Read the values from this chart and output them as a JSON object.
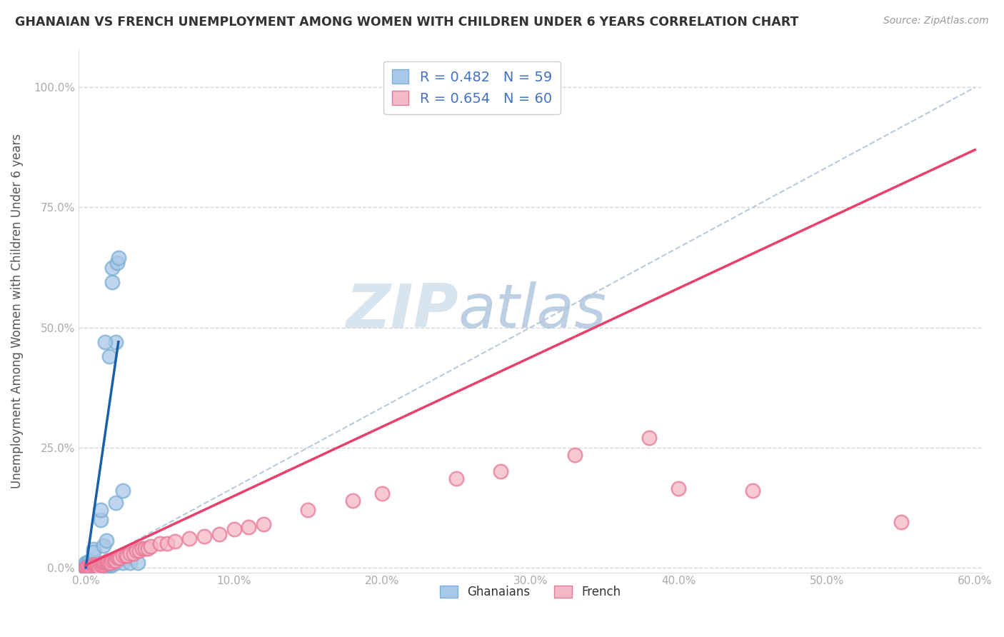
{
  "title": "GHANAIAN VS FRENCH UNEMPLOYMENT AMONG WOMEN WITH CHILDREN UNDER 6 YEARS CORRELATION CHART",
  "source": "Source: ZipAtlas.com",
  "ylabel": "Unemployment Among Women with Children Under 6 years",
  "xlabel": "",
  "xlim": [
    -0.005,
    0.605
  ],
  "ylim": [
    -0.01,
    1.08
  ],
  "xticks": [
    0.0,
    0.1,
    0.2,
    0.3,
    0.4,
    0.5,
    0.6
  ],
  "xticklabels": [
    "0.0%",
    "10.0%",
    "20.0%",
    "30.0%",
    "40.0%",
    "50.0%",
    "60.0%"
  ],
  "yticks": [
    0.0,
    0.25,
    0.5,
    0.75,
    1.0
  ],
  "yticklabels": [
    "0.0%",
    "25.0%",
    "50.0%",
    "75.0%",
    "100.0%"
  ],
  "ghanaian_color": "#a8c8e8",
  "ghanaian_edge": "#7bafd4",
  "french_color": "#f5b8c8",
  "french_edge": "#e87898",
  "blue_line_color": "#1a5fa8",
  "pink_line_color": "#e8406a",
  "ghanaian_R": 0.482,
  "ghanaian_N": 59,
  "french_R": 0.654,
  "french_N": 60,
  "legend_label_ghanaian": "Ghanaians",
  "legend_label_french": "French",
  "background_color": "#ffffff",
  "grid_color": "#cccccc",
  "title_color": "#333333",
  "axis_label_color": "#555555",
  "tick_color": "#4472c4",
  "watermark_zip": "ZIP",
  "watermark_atlas": "atlas",
  "diag_line_color": "#b0c4d8",
  "ghanaian_points": [
    [
      0.0,
      0.0
    ],
    [
      0.0,
      0.0
    ],
    [
      0.0,
      0.005
    ],
    [
      0.0,
      0.01
    ],
    [
      0.001,
      0.0
    ],
    [
      0.001,
      0.005
    ],
    [
      0.001,
      0.01
    ],
    [
      0.002,
      0.0
    ],
    [
      0.002,
      0.005
    ],
    [
      0.002,
      0.01
    ],
    [
      0.003,
      0.0
    ],
    [
      0.003,
      0.005
    ],
    [
      0.003,
      0.015
    ],
    [
      0.004,
      0.0
    ],
    [
      0.004,
      0.005
    ],
    [
      0.004,
      0.01
    ],
    [
      0.005,
      0.0
    ],
    [
      0.005,
      0.005
    ],
    [
      0.005,
      0.01
    ],
    [
      0.006,
      0.0
    ],
    [
      0.006,
      0.005
    ],
    [
      0.006,
      0.01
    ],
    [
      0.007,
      0.0
    ],
    [
      0.007,
      0.005
    ],
    [
      0.007,
      0.01
    ],
    [
      0.008,
      0.0
    ],
    [
      0.008,
      0.005
    ],
    [
      0.009,
      0.0
    ],
    [
      0.009,
      0.005
    ],
    [
      0.01,
      0.0
    ],
    [
      0.01,
      0.005
    ],
    [
      0.011,
      0.0
    ],
    [
      0.011,
      0.005
    ],
    [
      0.012,
      0.0
    ],
    [
      0.013,
      0.005
    ],
    [
      0.014,
      0.0
    ],
    [
      0.015,
      0.005
    ],
    [
      0.016,
      0.005
    ],
    [
      0.017,
      0.005
    ],
    [
      0.018,
      0.005
    ],
    [
      0.02,
      0.01
    ],
    [
      0.025,
      0.01
    ],
    [
      0.03,
      0.01
    ],
    [
      0.035,
      0.01
    ],
    [
      0.005,
      0.038
    ],
    [
      0.005,
      0.033
    ],
    [
      0.012,
      0.046
    ],
    [
      0.014,
      0.057
    ],
    [
      0.01,
      0.1
    ],
    [
      0.01,
      0.12
    ],
    [
      0.02,
      0.135
    ],
    [
      0.025,
      0.16
    ],
    [
      0.018,
      0.595
    ],
    [
      0.018,
      0.625
    ],
    [
      0.021,
      0.635
    ],
    [
      0.022,
      0.645
    ],
    [
      0.016,
      0.44
    ],
    [
      0.02,
      0.47
    ],
    [
      0.013,
      0.47
    ]
  ],
  "french_points": [
    [
      0.0,
      0.0
    ],
    [
      0.001,
      0.0
    ],
    [
      0.002,
      0.0
    ],
    [
      0.003,
      0.0
    ],
    [
      0.004,
      0.0
    ],
    [
      0.005,
      0.0
    ],
    [
      0.005,
      0.005
    ],
    [
      0.006,
      0.0
    ],
    [
      0.006,
      0.005
    ],
    [
      0.007,
      0.0
    ],
    [
      0.007,
      0.005
    ],
    [
      0.008,
      0.0
    ],
    [
      0.008,
      0.005
    ],
    [
      0.009,
      0.0
    ],
    [
      0.01,
      0.005
    ],
    [
      0.011,
      0.005
    ],
    [
      0.012,
      0.005
    ],
    [
      0.012,
      0.01
    ],
    [
      0.013,
      0.01
    ],
    [
      0.014,
      0.01
    ],
    [
      0.015,
      0.01
    ],
    [
      0.015,
      0.015
    ],
    [
      0.016,
      0.01
    ],
    [
      0.017,
      0.01
    ],
    [
      0.018,
      0.015
    ],
    [
      0.019,
      0.015
    ],
    [
      0.02,
      0.015
    ],
    [
      0.021,
      0.02
    ],
    [
      0.022,
      0.02
    ],
    [
      0.023,
      0.02
    ],
    [
      0.025,
      0.025
    ],
    [
      0.027,
      0.025
    ],
    [
      0.028,
      0.025
    ],
    [
      0.03,
      0.03
    ],
    [
      0.032,
      0.03
    ],
    [
      0.034,
      0.035
    ],
    [
      0.036,
      0.035
    ],
    [
      0.038,
      0.04
    ],
    [
      0.04,
      0.04
    ],
    [
      0.042,
      0.04
    ],
    [
      0.044,
      0.045
    ],
    [
      0.05,
      0.05
    ],
    [
      0.055,
      0.05
    ],
    [
      0.06,
      0.055
    ],
    [
      0.07,
      0.06
    ],
    [
      0.08,
      0.065
    ],
    [
      0.09,
      0.07
    ],
    [
      0.1,
      0.08
    ],
    [
      0.11,
      0.085
    ],
    [
      0.12,
      0.09
    ],
    [
      0.15,
      0.12
    ],
    [
      0.18,
      0.14
    ],
    [
      0.2,
      0.155
    ],
    [
      0.25,
      0.185
    ],
    [
      0.28,
      0.2
    ],
    [
      0.33,
      0.235
    ],
    [
      0.38,
      0.27
    ],
    [
      0.4,
      0.165
    ],
    [
      0.45,
      0.16
    ],
    [
      0.55,
      0.095
    ]
  ]
}
